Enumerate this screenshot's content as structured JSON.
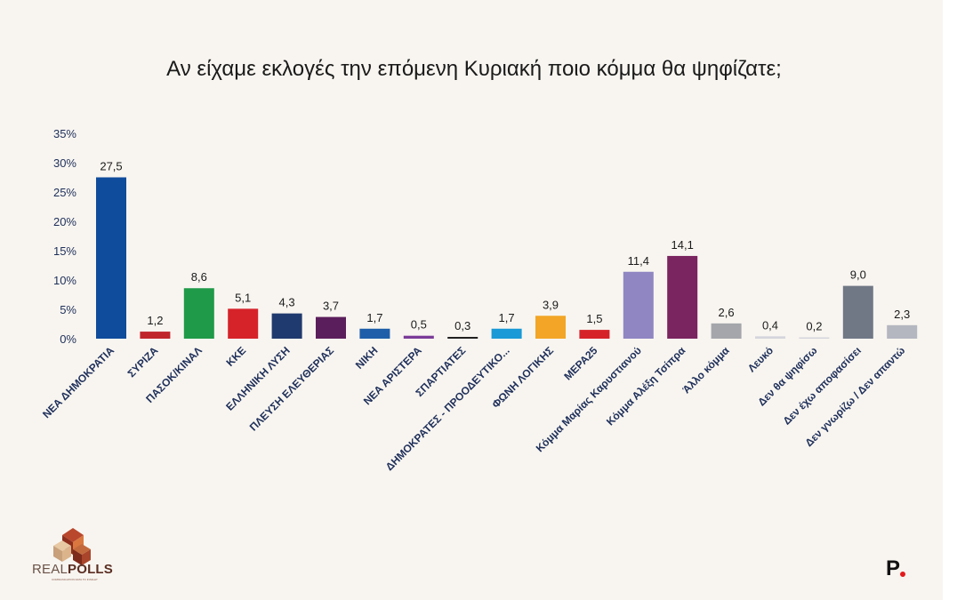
{
  "chart_data": {
    "type": "bar",
    "title": "Αν είχαμε εκλογές την επόμενη Κυριακή ποιο κόμμα θα ψηφίζατε;",
    "xlabel": "",
    "ylabel": "",
    "ylim": [
      0,
      35
    ],
    "yticks": [
      "0%",
      "5%",
      "10%",
      "15%",
      "20%",
      "25%",
      "30%",
      "35%"
    ],
    "ytick_values": [
      0,
      5,
      10,
      15,
      20,
      25,
      30,
      35
    ],
    "grid": false,
    "legend": "none",
    "categories": [
      "ΝΕΑ ΔΗΜΟΚΡΑΤΙΑ",
      "ΣΥΡΙΖΑ",
      "ΠΑΣΟΚ/ΚΙΝΑΛ",
      "ΚΚΕ",
      "ΕΛΛΗΝΙΚΗ ΛΥΣΗ",
      "ΠΛΕΥΣΗ ΕΛΕΥΘΕΡΙΑΣ",
      "ΝΙΚΗ",
      "ΝΕΑ ΑΡΙΣΤΕΡΑ",
      "ΣΠΑΡΤΙΑΤΕΣ",
      "ΔΗΜΟΚΡΑΤΕΣ - ΠΡΟΟΔΕΥΤΙΚΟ...",
      "ΦΩΝΗ ΛΟΓΙΚΗΣ",
      "ΜΕΡΑ25",
      "Κόμμα Μαρίας Καρυστιανού",
      "Κόμμα Αλέξη Τσίπρα",
      "Άλλο κόμμα",
      "Λευκό",
      "Δεν θα ψηφίσω",
      "Δεν έχω αποφασίσει",
      "Δεν γνωρίζω / Δεν απαντώ"
    ],
    "values": [
      27.5,
      1.2,
      8.6,
      5.1,
      4.3,
      3.7,
      1.7,
      0.5,
      0.3,
      1.7,
      3.9,
      1.5,
      11.4,
      14.1,
      2.6,
      0.4,
      0.2,
      9.0,
      2.3
    ],
    "value_labels": [
      "27,5",
      "1,2",
      "8,6",
      "5,1",
      "4,3",
      "3,7",
      "1,7",
      "0,5",
      "0,3",
      "1,7",
      "3,9",
      "1,5",
      "11,4",
      "14,1",
      "2,6",
      "0,4",
      "0,2",
      "9,0",
      "2,3"
    ],
    "colors": [
      "#0f4c9c",
      "#c0272d",
      "#1f9a48",
      "#d6232a",
      "#1f3a6e",
      "#5b1e5c",
      "#1f5faa",
      "#7a3b98",
      "#1e1e1e",
      "#1a9ad6",
      "#f2a526",
      "#d6232a",
      "#8f86c2",
      "#7a2460",
      "#a4a6ab",
      "#d4d5dc",
      "#d4d5dc",
      "#707886",
      "#b4b7c0"
    ]
  },
  "branding": {
    "logo_text_light": "REAL",
    "logo_text_bold": "POLLS",
    "logo_tagline": "COMMUNICATION DATA TO INSIGHT",
    "logo_icon": "stacked-cubes-icon",
    "publisher_mark": "P",
    "publisher_dot_color": "#e3191b"
  }
}
